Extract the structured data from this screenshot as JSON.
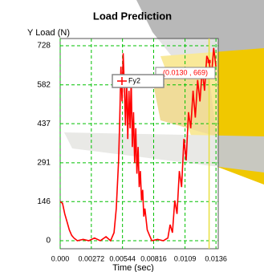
{
  "chart_data": {
    "type": "line",
    "title": "Load Prediction",
    "y_label": "Y Load (N)",
    "x_label": "Time (sec)",
    "xlim": [
      0,
      0.0138
    ],
    "ylim": [
      -30,
      755
    ],
    "xticks": [
      {
        "value": 0,
        "label": "0.000"
      },
      0.00272,
      0.00544,
      0.00816,
      0.0109,
      0.0136
    ],
    "yticks": [
      0,
      146,
      291,
      437,
      582,
      728
    ],
    "grid": true,
    "grid_color": "#00c000",
    "legend": "top",
    "marker": {
      "x": 0.013,
      "y": 669,
      "label": "(0.0130 , 669)",
      "color": "#e8e040"
    },
    "series": [
      {
        "name": "Fy2",
        "color": "#ff0000",
        "x": [
          0,
          0.0002,
          0.0004,
          0.0006,
          0.0008,
          0.001,
          0.0012,
          0.0015,
          0.002,
          0.0025,
          0.003,
          0.0035,
          0.004,
          0.0044,
          0.0047,
          0.0049,
          0.0051,
          0.0052,
          0.0053,
          0.0054,
          0.0055,
          0.0056,
          0.0057,
          0.0058,
          0.0059,
          0.006,
          0.0061,
          0.0062,
          0.0063,
          0.0064,
          0.0065,
          0.0066,
          0.0067,
          0.0068,
          0.0069,
          0.007,
          0.0071,
          0.0072,
          0.0073,
          0.0074,
          0.0076,
          0.0078,
          0.008,
          0.0085,
          0.009,
          0.0094,
          0.0096,
          0.0098,
          0.01,
          0.0102,
          0.0104,
          0.0106,
          0.0108,
          0.011,
          0.0112,
          0.0114,
          0.0116,
          0.0118,
          0.012,
          0.0122,
          0.0124,
          0.0126,
          0.0128,
          0.013,
          0.0132,
          0.0134,
          0.0136
        ],
        "values": [
          146,
          140,
          100,
          70,
          40,
          20,
          10,
          0,
          5,
          0,
          10,
          0,
          15,
          0,
          30,
          120,
          300,
          450,
          650,
          520,
          700,
          580,
          430,
          610,
          380,
          560,
          420,
          600,
          350,
          480,
          290,
          420,
          250,
          350,
          200,
          260,
          150,
          190,
          90,
          120,
          40,
          20,
          0,
          5,
          0,
          10,
          60,
          30,
          150,
          100,
          260,
          200,
          380,
          300,
          480,
          420,
          560,
          460,
          600,
          520,
          640,
          560,
          690,
          669,
          610,
          720,
          650
        ]
      }
    ]
  }
}
